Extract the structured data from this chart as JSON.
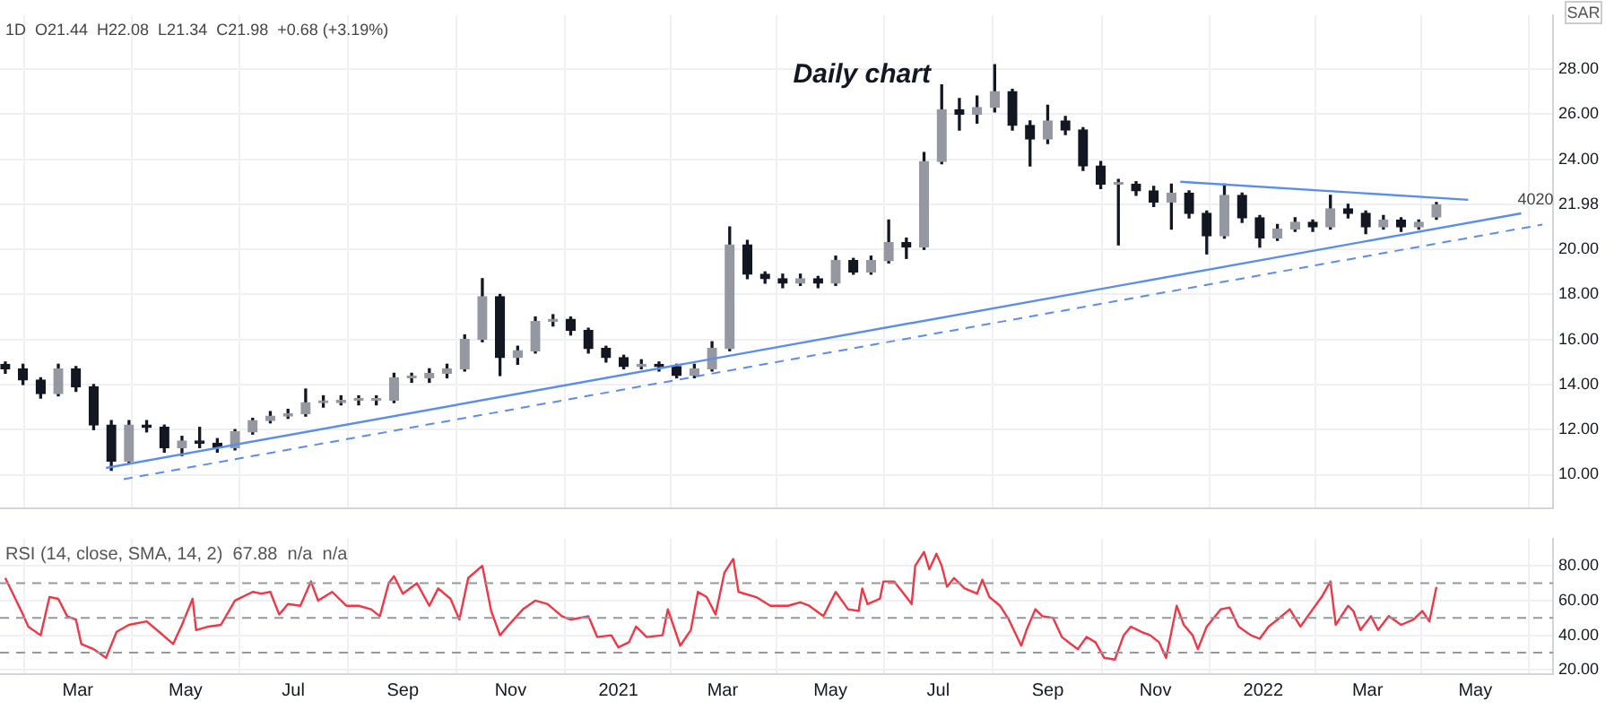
{
  "chart_data": [
    {
      "type": "candlestick",
      "title": "Daily chart",
      "ylabel": "SAR",
      "annotations": [
        "1D  O21.44  H22.08  L21.34  C21.98  +0.68 (+3.19%)"
      ],
      "color": "#131722",
      "colors": [
        "#131722",
        "#131722",
        "#131722",
        "#9598a1",
        "#131722",
        "#131722",
        "#131722",
        "#9598a1",
        "#131722",
        "#131722",
        "#9598a1",
        "#131722",
        "#131722",
        "#9598a1",
        "#9598a1",
        "#9598a1",
        "#9598a1",
        "#9598a1",
        "#9598a1",
        "#9598a1",
        "#9598a1",
        "#9598a1",
        "#9598a1",
        "#9598a1",
        "#9598a1",
        "#9598a1",
        "#9598a1",
        "#9598a1",
        "#131722",
        "#9598a1",
        "#9598a1",
        "#9598a1",
        "#131722",
        "#131722",
        "#131722",
        "#131722",
        "#9598a1",
        "#131722",
        "#131722",
        "#9598a1",
        "#9598a1",
        "#9598a1",
        "#131722",
        "#131722",
        "#131722",
        "#9598a1",
        "#131722",
        "#9598a1",
        "#131722",
        "#9598a1",
        "#9598a1",
        "#131722",
        "#9598a1",
        "#9598a1",
        "#131722",
        "#9598a1",
        "#9598a1",
        "#131722",
        "#131722",
        "#9598a1",
        "#131722",
        "#131722",
        "#131722",
        "#9598a1",
        "#131722",
        "#131722",
        "#9598a1",
        "#131722",
        "#131722",
        "#9598a1",
        "#131722",
        "#131722",
        "#9598a1",
        "#9598a1",
        "#131722",
        "#9598a1",
        "#131722",
        "#131722",
        "#9598a1",
        "#131722",
        "#9598a1",
        "#9598a1"
      ],
      "x": [
        "2020-01-20",
        "2020-01-30",
        "2020-02-09",
        "2020-02-19",
        "2020-02-29",
        "2020-03-10",
        "2020-03-20",
        "2020-03-30",
        "2020-04-09",
        "2020-04-19",
        "2020-04-29",
        "2020-05-09",
        "2020-05-19",
        "2020-05-29",
        "2020-06-08",
        "2020-06-18",
        "2020-06-28",
        "2020-07-08",
        "2020-07-18",
        "2020-07-28",
        "2020-08-07",
        "2020-08-17",
        "2020-08-27",
        "2020-09-06",
        "2020-09-16",
        "2020-09-26",
        "2020-10-06",
        "2020-10-16",
        "2020-10-26",
        "2020-11-05",
        "2020-11-15",
        "2020-11-25",
        "2020-12-05",
        "2020-12-15",
        "2020-12-25",
        "2021-01-04",
        "2021-01-14",
        "2021-01-24",
        "2021-02-03",
        "2021-02-13",
        "2021-02-23",
        "2021-03-05",
        "2021-03-15",
        "2021-03-25",
        "2021-04-04",
        "2021-04-14",
        "2021-04-24",
        "2021-05-04",
        "2021-05-14",
        "2021-05-24",
        "2021-06-03",
        "2021-06-13",
        "2021-06-23",
        "2021-07-03",
        "2021-07-13",
        "2021-07-23",
        "2021-08-02",
        "2021-08-12",
        "2021-08-22",
        "2021-09-01",
        "2021-09-11",
        "2021-09-21",
        "2021-10-01",
        "2021-10-11",
        "2021-10-21",
        "2021-10-31",
        "2021-11-10",
        "2021-11-20",
        "2021-11-30",
        "2021-12-10",
        "2021-12-20",
        "2021-12-30",
        "2022-01-09",
        "2022-01-19",
        "2022-01-29",
        "2022-02-08",
        "2022-02-18",
        "2022-02-28",
        "2022-03-10",
        "2022-03-20",
        "2022-03-30",
        "2022-04-09"
      ],
      "ohlc": [
        [
          14.9,
          15.0,
          14.5,
          14.7
        ],
        [
          14.7,
          14.9,
          14.0,
          14.2
        ],
        [
          14.2,
          14.3,
          13.4,
          13.6
        ],
        [
          13.6,
          14.9,
          13.5,
          14.7
        ],
        [
          14.7,
          14.8,
          13.7,
          13.9
        ],
        [
          13.9,
          14.0,
          12.0,
          12.2
        ],
        [
          12.2,
          12.4,
          10.2,
          10.6
        ],
        [
          10.6,
          12.4,
          10.5,
          12.2
        ],
        [
          12.2,
          12.4,
          11.9,
          12.1
        ],
        [
          12.1,
          12.2,
          11.0,
          11.2
        ],
        [
          11.2,
          11.7,
          10.85,
          11.5
        ],
        [
          11.5,
          12.1,
          11.2,
          11.4
        ],
        [
          11.4,
          11.6,
          11.0,
          11.2
        ],
        [
          11.2,
          12.0,
          11.1,
          11.9
        ],
        [
          11.9,
          12.5,
          11.8,
          12.4
        ],
        [
          12.4,
          12.8,
          12.3,
          12.6
        ],
        [
          12.6,
          12.9,
          12.5,
          12.7
        ],
        [
          12.7,
          13.8,
          12.6,
          13.2
        ],
        [
          13.2,
          13.5,
          13.0,
          13.2
        ],
        [
          13.2,
          13.5,
          13.1,
          13.3
        ],
        [
          13.3,
          13.5,
          13.1,
          13.3
        ],
        [
          13.3,
          13.5,
          13.1,
          13.3
        ],
        [
          13.3,
          14.5,
          13.2,
          14.3
        ],
        [
          14.3,
          14.5,
          14.1,
          14.3
        ],
        [
          14.3,
          14.7,
          14.1,
          14.5
        ],
        [
          14.5,
          14.9,
          14.3,
          14.7
        ],
        [
          14.7,
          16.2,
          14.6,
          16.0
        ],
        [
          16.0,
          18.7,
          15.9,
          17.9
        ],
        [
          17.9,
          18.0,
          14.4,
          15.2
        ],
        [
          15.2,
          15.7,
          14.9,
          15.5
        ],
        [
          15.5,
          17.0,
          15.4,
          16.8
        ],
        [
          16.8,
          17.1,
          16.6,
          16.9
        ],
        [
          16.9,
          17.0,
          16.2,
          16.4
        ],
        [
          16.4,
          16.5,
          15.4,
          15.6
        ],
        [
          15.6,
          15.7,
          15.0,
          15.2
        ],
        [
          15.2,
          15.3,
          14.7,
          14.8
        ],
        [
          14.8,
          15.1,
          14.7,
          14.9
        ],
        [
          14.9,
          15.0,
          14.6,
          14.8
        ],
        [
          14.8,
          14.9,
          14.3,
          14.4
        ],
        [
          14.4,
          14.9,
          14.3,
          14.7
        ],
        [
          14.7,
          15.9,
          14.6,
          15.6
        ],
        [
          15.6,
          21.0,
          15.5,
          20.2
        ],
        [
          20.2,
          20.4,
          18.7,
          18.9
        ],
        [
          18.9,
          19.0,
          18.5,
          18.7
        ],
        [
          18.7,
          18.9,
          18.3,
          18.5
        ],
        [
          18.5,
          18.9,
          18.4,
          18.7
        ],
        [
          18.7,
          18.8,
          18.3,
          18.5
        ],
        [
          18.5,
          19.7,
          18.4,
          19.5
        ],
        [
          19.5,
          19.6,
          18.9,
          19.0
        ],
        [
          19.0,
          19.7,
          18.9,
          19.5
        ],
        [
          19.5,
          21.3,
          19.4,
          20.3
        ],
        [
          20.3,
          20.5,
          19.6,
          20.1
        ],
        [
          20.1,
          24.3,
          20.0,
          23.9
        ],
        [
          23.9,
          27.3,
          23.8,
          26.2
        ],
        [
          26.2,
          26.7,
          25.3,
          26.0
        ],
        [
          26.0,
          26.8,
          25.6,
          26.3
        ],
        [
          26.3,
          28.2,
          26.1,
          27.0
        ],
        [
          27.0,
          27.1,
          25.3,
          25.5
        ],
        [
          25.5,
          25.7,
          23.7,
          24.9
        ],
        [
          24.9,
          26.4,
          24.7,
          25.7
        ],
        [
          25.7,
          25.9,
          25.1,
          25.3
        ],
        [
          25.3,
          25.4,
          23.5,
          23.7
        ],
        [
          23.7,
          23.9,
          22.7,
          22.9
        ],
        [
          22.9,
          23.1,
          20.2,
          22.9
        ],
        [
          22.9,
          23.0,
          22.4,
          22.6
        ],
        [
          22.6,
          22.8,
          21.9,
          22.1
        ],
        [
          22.1,
          22.9,
          20.9,
          22.5
        ],
        [
          22.5,
          22.6,
          21.4,
          21.6
        ],
        [
          21.6,
          21.7,
          19.8,
          20.6
        ],
        [
          20.6,
          22.9,
          20.5,
          22.4
        ],
        [
          22.4,
          22.5,
          21.2,
          21.4
        ],
        [
          21.4,
          21.5,
          20.1,
          20.5
        ],
        [
          20.5,
          21.1,
          20.4,
          20.9
        ],
        [
          20.9,
          21.4,
          20.8,
          21.2
        ],
        [
          21.2,
          21.3,
          20.8,
          21.0
        ],
        [
          21.0,
          22.4,
          20.9,
          21.8
        ],
        [
          21.8,
          22.0,
          21.4,
          21.6
        ],
        [
          21.6,
          21.7,
          20.7,
          21.0
        ],
        [
          21.0,
          21.5,
          20.9,
          21.3
        ],
        [
          21.3,
          21.4,
          20.8,
          21.0
        ],
        [
          21.0,
          21.3,
          20.9,
          21.2
        ],
        [
          21.44,
          22.08,
          21.34,
          21.98
        ]
      ],
      "series": [
        {
          "type": "line",
          "name": "4020",
          "color": "#5b8def",
          "x": [
            "2020-03-17",
            "2022-05-27"
          ],
          "values": [
            10.3,
            21.6
          ]
        },
        {
          "type": "line",
          "color": "#5b8def",
          "line_style": "dashed",
          "x": [
            "2020-03-27",
            "2022-06-08"
          ],
          "values": [
            9.8,
            21.1
          ]
        },
        {
          "type": "line",
          "color": "#5b8def",
          "x": [
            "2021-11-15",
            "2022-04-27"
          ],
          "values": [
            23.0,
            22.2
          ]
        }
      ],
      "xlim": [
        "2020-01-17",
        "2022-06-14"
      ],
      "ylim": [
        8.5,
        30.4
      ],
      "xticks": [
        {
          "value": "2020-03-01",
          "label": null
        },
        {
          "value": "2020-05-01",
          "label": null
        },
        {
          "value": "2020-07-01",
          "label": null
        },
        {
          "value": "2020-09-01",
          "label": null
        },
        {
          "value": "2020-11-01",
          "label": null
        },
        {
          "value": "2021-01-01",
          "label": null
        },
        {
          "value": "2021-03-01",
          "label": null
        },
        {
          "value": "2021-05-01",
          "label": null
        },
        {
          "value": "2021-07-01",
          "label": null
        },
        {
          "value": "2021-09-01",
          "label": null
        },
        {
          "value": "2021-11-01",
          "label": null
        },
        {
          "value": "2022-01-01",
          "label": null
        },
        {
          "value": "2022-03-01",
          "label": null
        },
        {
          "value": "2022-05-01",
          "label": null
        }
      ],
      "yticks": [
        {
          "value": 10,
          "label": "10.00"
        },
        {
          "value": 12,
          "label": "12.00"
        },
        {
          "value": 14,
          "label": "14.00"
        },
        {
          "value": 16,
          "label": "16.00"
        },
        {
          "value": 18,
          "label": "18.00"
        },
        {
          "value": 20,
          "label": "20.00"
        },
        {
          "value": 21.98,
          "label": "21.98"
        },
        {
          "value": 24,
          "label": "24.00"
        },
        {
          "value": 26,
          "label": "26.00"
        },
        {
          "value": 28,
          "label": "28.00"
        }
      ],
      "grid": true,
      "tick_labels": "y"
    },
    {
      "type": "line",
      "title": "RSI (14, close, SMA, 14, 2)  67.88  n/a  n/a",
      "x": [
        "2020-01-20",
        "2020-01-30",
        "2020-02-02",
        "2020-02-09",
        "2020-02-14",
        "2020-02-19",
        "2020-02-24",
        "2020-02-29",
        "2020-03-03",
        "2020-03-10",
        "2020-03-17",
        "2020-03-23",
        "2020-03-30",
        "2020-04-09",
        "2020-04-16",
        "2020-04-24",
        "2020-04-29",
        "2020-05-05",
        "2020-05-07",
        "2020-05-14",
        "2020-05-21",
        "2020-05-29",
        "2020-06-08",
        "2020-06-13",
        "2020-06-18",
        "2020-06-23",
        "2020-06-28",
        "2020-07-05",
        "2020-07-11",
        "2020-07-15",
        "2020-07-23",
        "2020-07-31",
        "2020-08-07",
        "2020-08-14",
        "2020-08-19",
        "2020-08-24",
        "2020-08-27",
        "2020-09-01",
        "2020-09-09",
        "2020-09-16",
        "2020-09-21",
        "2020-09-28",
        "2020-10-03",
        "2020-10-08",
        "2020-10-16",
        "2020-10-21",
        "2020-10-26",
        "2020-10-31",
        "2020-11-08",
        "2020-11-15",
        "2020-11-22",
        "2020-11-30",
        "2020-12-05",
        "2020-12-15",
        "2020-12-20",
        "2020-12-28",
        "2021-01-01",
        "2021-01-07",
        "2021-01-11",
        "2021-01-17",
        "2021-01-26",
        "2021-01-29",
        "2021-02-05",
        "2021-02-11",
        "2021-02-15",
        "2021-02-20",
        "2021-02-25",
        "2021-03-02",
        "2021-03-07",
        "2021-03-10",
        "2021-03-20",
        "2021-03-28",
        "2021-04-07",
        "2021-04-14",
        "2021-04-19",
        "2021-04-27",
        "2021-05-04",
        "2021-05-11",
        "2021-05-17",
        "2021-05-19",
        "2021-05-22",
        "2021-05-29",
        "2021-05-31",
        "2021-06-06",
        "2021-06-13",
        "2021-06-16",
        "2021-06-18",
        "2021-06-23",
        "2021-06-26",
        "2021-06-30",
        "2021-07-03",
        "2021-07-06",
        "2021-07-10",
        "2021-07-16",
        "2021-07-23",
        "2021-07-26",
        "2021-07-30",
        "2021-08-05",
        "2021-08-10",
        "2021-08-17",
        "2021-08-20",
        "2021-08-25",
        "2021-08-29",
        "2021-09-04",
        "2021-09-09",
        "2021-09-14",
        "2021-09-18",
        "2021-09-23",
        "2021-09-28",
        "2021-10-03",
        "2021-10-09",
        "2021-10-14",
        "2021-10-18",
        "2021-10-24",
        "2021-10-29",
        "2021-11-03",
        "2021-11-07",
        "2021-11-10",
        "2021-11-13",
        "2021-11-17",
        "2021-11-22",
        "2021-11-25",
        "2021-11-30",
        "2021-12-08",
        "2021-12-13",
        "2021-12-18",
        "2021-12-25",
        "2021-12-30",
        "2022-01-04",
        "2022-01-09",
        "2022-01-16",
        "2022-01-22",
        "2022-01-29",
        "2022-02-03",
        "2022-02-08",
        "2022-02-11",
        "2022-02-18",
        "2022-02-21",
        "2022-02-25",
        "2022-03-03",
        "2022-03-07",
        "2022-03-13",
        "2022-03-20",
        "2022-03-27",
        "2022-04-01",
        "2022-04-05",
        "2022-04-09"
      ],
      "series": [
        {
          "color": "#f23645",
          "values": [
            73,
            52,
            45,
            40,
            62,
            61,
            51,
            49,
            35,
            32,
            27,
            42,
            46,
            48,
            42,
            35,
            46,
            61,
            43,
            45,
            46,
            60,
            65,
            64,
            65,
            52,
            58,
            57,
            71,
            60,
            65,
            57,
            57,
            55,
            51,
            70,
            74,
            64,
            70,
            57,
            67,
            61,
            49,
            73,
            80,
            54,
            40,
            46,
            55,
            60,
            58,
            51,
            49,
            51,
            39,
            40,
            33,
            36,
            45,
            39,
            40,
            55,
            34,
            43,
            65,
            62,
            52,
            76,
            84,
            65,
            62,
            57,
            57,
            59,
            57,
            51,
            65,
            55,
            54,
            67,
            58,
            61,
            71,
            71,
            62,
            58,
            80,
            88,
            78,
            87,
            80,
            68,
            73,
            67,
            64,
            72,
            62,
            57,
            49,
            34,
            43,
            55,
            51,
            50,
            39,
            35,
            32,
            39,
            36,
            27,
            26,
            40,
            45,
            42,
            40,
            36,
            27,
            42,
            57,
            46,
            40,
            32,
            45,
            55,
            56,
            45,
            40,
            38,
            45,
            49,
            55,
            45,
            55,
            62,
            71,
            46,
            57,
            54,
            43,
            51,
            43,
            51,
            46,
            49,
            54,
            48,
            67.88
          ]
        }
      ],
      "xlim": [
        "2020-01-17",
        "2022-06-14"
      ],
      "ylim": [
        17.6,
        95.7
      ],
      "xticks": [
        {
          "value": "2020-03-01",
          "label": "Mar"
        },
        {
          "value": "2020-05-01",
          "label": "May"
        },
        {
          "value": "2020-07-01",
          "label": "Jul"
        },
        {
          "value": "2020-09-01",
          "label": "Sep"
        },
        {
          "value": "2020-11-01",
          "label": "Nov"
        },
        {
          "value": "2021-01-01",
          "label": "2021"
        },
        {
          "value": "2021-03-01",
          "label": "Mar"
        },
        {
          "value": "2021-05-01",
          "label": "May"
        },
        {
          "value": "2021-07-01",
          "label": "Jul"
        },
        {
          "value": "2021-09-01",
          "label": "Sep"
        },
        {
          "value": "2021-11-01",
          "label": "Nov"
        },
        {
          "value": "2022-01-01",
          "label": "2022"
        },
        {
          "value": "2022-03-01",
          "label": "Mar"
        },
        {
          "value": "2022-05-01",
          "label": "May"
        }
      ],
      "yticks": [
        {
          "value": 20,
          "label": "20.00"
        },
        {
          "value": 40,
          "label": "40.00"
        },
        {
          "value": 60,
          "label": "60.00"
        },
        {
          "value": 80,
          "label": "80.00"
        }
      ],
      "grid": true,
      "ref_lines": [
        {
          "axis": "y",
          "value": 70,
          "color": "#9598a1",
          "line_style": "dashed"
        },
        {
          "axis": "y",
          "value": 50,
          "color": "#9598a1",
          "line_style": "dashed"
        },
        {
          "axis": "y",
          "value": 30,
          "color": "#9598a1",
          "line_style": "dashed"
        }
      ]
    }
  ]
}
